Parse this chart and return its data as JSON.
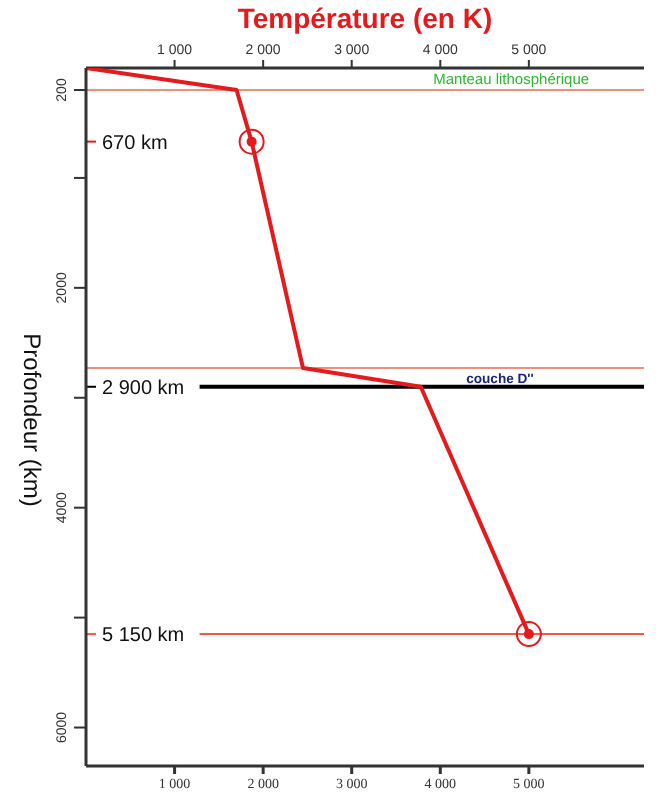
{
  "chart_data": {
    "type": "line",
    "x2label": "Température (en K)",
    "ylabel": "Profondeur (km)",
    "x": [
      0,
      1700,
      1870,
      2450,
      3780,
      5000
    ],
    "series": [
      {
        "color": "#e41a1c",
        "values": [
          0,
          200,
          670,
          2730,
          2900,
          5150
        ]
      },
      {
        "type": "scatter",
        "marker": "circle",
        "color": "#e41a1c",
        "x": [
          1870,
          5000
        ],
        "values": [
          670,
          5150
        ]
      }
    ],
    "xlim": [
      0,
      6300
    ],
    "xticks": [
      {
        "value": 1000,
        "label": "1 000"
      },
      {
        "value": 2000,
        "label": "2 000"
      },
      {
        "value": 3000,
        "label": "3 000"
      },
      {
        "value": 4000,
        "label": "4 000"
      },
      {
        "value": 5000,
        "label": "5 000"
      }
    ],
    "x2lim": [
      0,
      6300
    ],
    "x2ticks": [
      {
        "value": 1000,
        "label": "1 000"
      },
      {
        "value": 2000,
        "label": "2 000"
      },
      {
        "value": 3000,
        "label": "3 000"
      },
      {
        "value": 4000,
        "label": "4 000"
      },
      {
        "value": 5000,
        "label": "5 000"
      }
    ],
    "ylim": [
      6350,
      0
    ],
    "yticks": [
      {
        "value": 200,
        "label": "200"
      },
      {
        "value": 1000,
        "label": null
      },
      2000,
      {
        "value": 3000,
        "label": null
      },
      4000,
      {
        "value": 5000,
        "label": null
      },
      6000
    ],
    "ref_lines": [
      {
        "axis": "y",
        "value": 200,
        "color": "#f0907c"
      },
      {
        "axis": "y",
        "value": 2730,
        "color": "#f0907c"
      },
      {
        "axis": "y",
        "value": 2900,
        "label": "2 900 km",
        "color": "#000000"
      },
      {
        "axis": "y",
        "value": 5150,
        "label": "5 150 km",
        "color": "#ee5a4a"
      }
    ],
    "annotations": [
      {
        "text": "Manteau lithosphérique",
        "x": 4800,
        "y": 200
      },
      "couche D''",
      "670 km"
    ],
    "grid": false,
    "legend": false
  }
}
